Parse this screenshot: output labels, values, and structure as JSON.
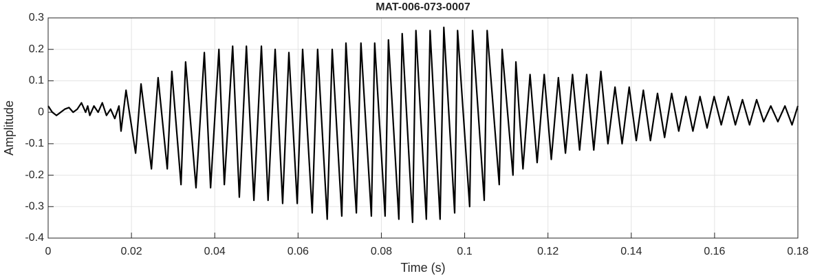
{
  "chart_data": {
    "type": "line",
    "title": "MAT-006-073-0007",
    "x_label": "Time (s)",
    "y_label": "Amplitude",
    "xlim": [
      0,
      0.18
    ],
    "xticks": [
      0,
      0.02,
      0.04,
      0.06,
      0.08,
      0.1,
      0.12,
      0.14,
      0.16,
      0.18
    ],
    "ylim": [
      -0.4,
      0.3
    ],
    "yticks": [
      -0.4,
      -0.3,
      -0.2,
      -0.1,
      0,
      0.1,
      0.2,
      0.3
    ],
    "grid": true,
    "series": [
      {
        "color": "#000000",
        "x": [
          0,
          0.001,
          0.002,
          0.004,
          0.005,
          0.006,
          0.007,
          0.008,
          0.009,
          0.0095,
          0.01,
          0.011,
          0.012,
          0.013,
          0.014,
          0.015,
          0.016,
          0.017,
          0.0175,
          0.0187,
          0.021,
          0.0223,
          0.0248,
          0.0264,
          0.0286,
          0.0297,
          0.0319,
          0.033,
          0.0355,
          0.0375,
          0.039,
          0.041,
          0.0423,
          0.0443,
          0.0459,
          0.0476,
          0.0494,
          0.0512,
          0.0528,
          0.0545,
          0.0563,
          0.0578,
          0.0598,
          0.0611,
          0.0634,
          0.0647,
          0.067,
          0.0682,
          0.0705,
          0.0715,
          0.074,
          0.0751,
          0.0776,
          0.0784,
          0.0809,
          0.0817,
          0.0842,
          0.085,
          0.0875,
          0.0883,
          0.0908,
          0.0917,
          0.0941,
          0.095,
          0.0976,
          0.0983,
          0.1012,
          0.1019,
          0.1047,
          0.1054,
          0.1083,
          0.109,
          0.1116,
          0.1123,
          0.114,
          0.1157,
          0.1174,
          0.1191,
          0.1208,
          0.1225,
          0.1242,
          0.1259,
          0.1276,
          0.1293,
          0.131,
          0.1327,
          0.1344,
          0.1361,
          0.1378,
          0.1395,
          0.1412,
          0.1429,
          0.1446,
          0.1463,
          0.148,
          0.1497,
          0.1514,
          0.1531,
          0.1548,
          0.1565,
          0.1582,
          0.1599,
          0.1616,
          0.1633,
          0.165,
          0.1667,
          0.1684,
          0.1701,
          0.1718,
          0.1735,
          0.1752,
          0.1769,
          0.1786,
          0.18
        ],
        "values": [
          0.02,
          0,
          -0.01,
          0.01,
          0.015,
          0,
          0.01,
          0.03,
          0,
          0.02,
          -0.01,
          0.02,
          0,
          0.03,
          -0.01,
          0.01,
          -0.02,
          0.02,
          -0.06,
          0.07,
          -0.13,
          0.09,
          -0.18,
          0.11,
          -0.18,
          0.13,
          -0.23,
          0.16,
          -0.24,
          0.19,
          -0.24,
          0.2,
          -0.23,
          0.21,
          -0.27,
          0.21,
          -0.28,
          0.21,
          -0.28,
          0.2,
          -0.29,
          0.19,
          -0.29,
          0.2,
          -0.32,
          0.2,
          -0.34,
          0.2,
          -0.33,
          0.22,
          -0.32,
          0.22,
          -0.33,
          0.22,
          -0.33,
          0.23,
          -0.34,
          0.25,
          -0.35,
          0.26,
          -0.34,
          0.26,
          -0.34,
          0.27,
          -0.32,
          0.26,
          -0.3,
          0.26,
          -0.28,
          0.26,
          -0.23,
          0.2,
          -0.2,
          0.16,
          -0.18,
          0.12,
          -0.16,
          0.12,
          -0.15,
          0.11,
          -0.13,
          0.12,
          -0.12,
          0.12,
          -0.12,
          0.13,
          -0.1,
          0.08,
          -0.1,
          0.08,
          -0.09,
          0.07,
          -0.09,
          0.06,
          -0.08,
          0.06,
          -0.06,
          0.05,
          -0.06,
          0.05,
          -0.05,
          0.05,
          -0.04,
          0.05,
          -0.04,
          0.04,
          -0.04,
          0.04,
          -0.03,
          0.02,
          -0.03,
          0.02,
          -0.04,
          0.02
        ]
      }
    ]
  }
}
